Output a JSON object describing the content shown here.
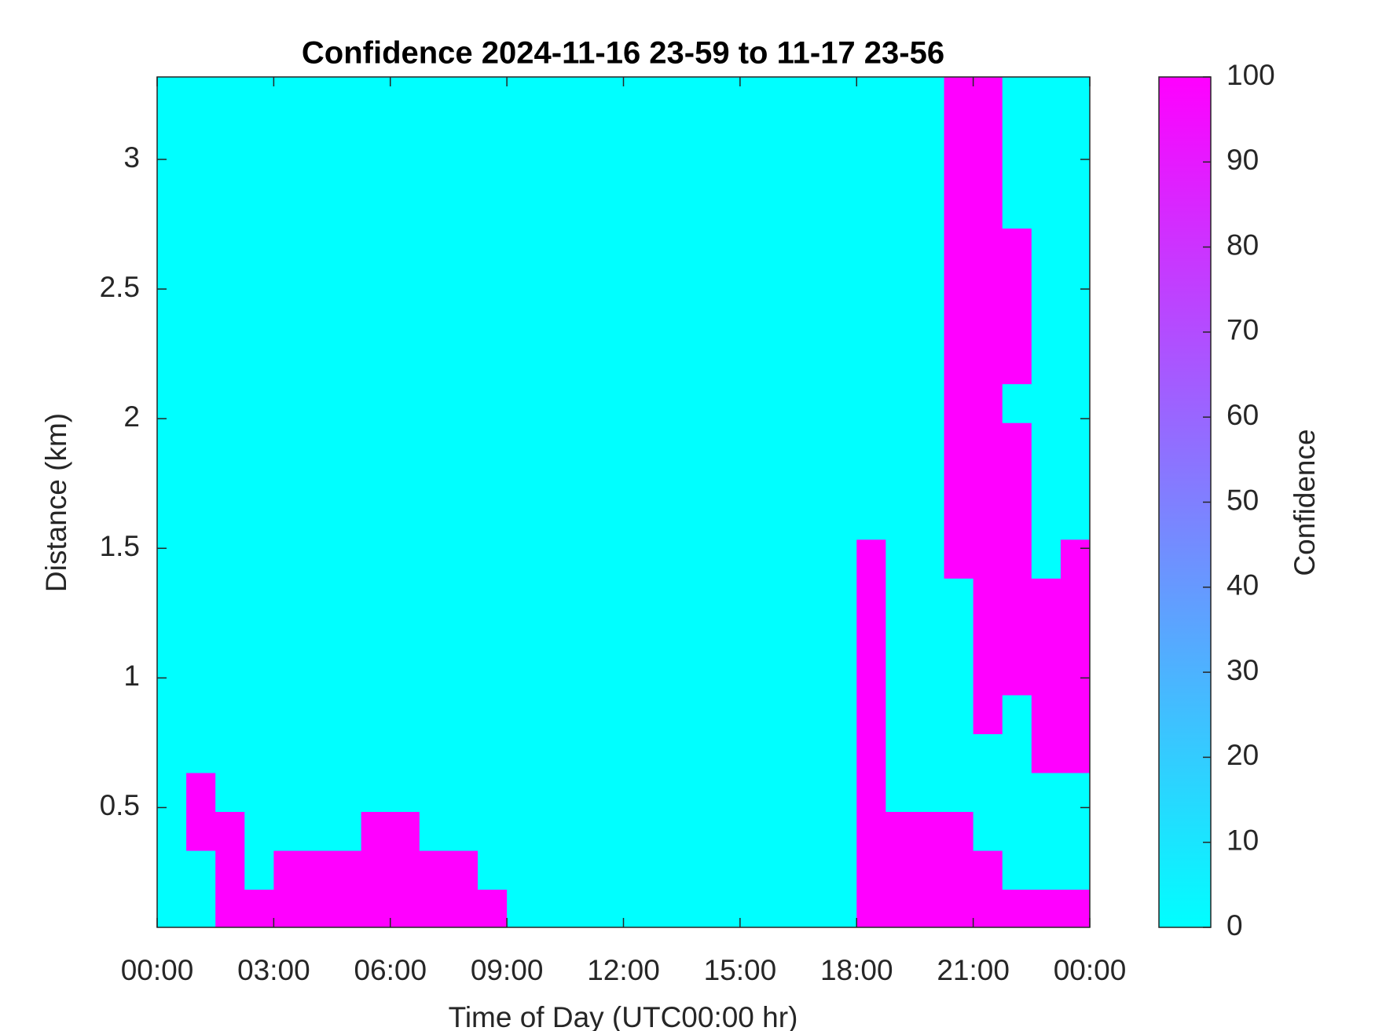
{
  "chart_data": {
    "type": "heatmap",
    "title": "Confidence 2024-11-16 23-59 to 11-17 23-56",
    "xlabel": "Time of Day (UTC00:00 hr)",
    "ylabel": "Distance (km)",
    "colorbar_label": "Confidence",
    "xlim": [
      0,
      24
    ],
    "xticks": [
      {
        "value": 0,
        "label": "00:00"
      },
      {
        "value": 3,
        "label": "03:00"
      },
      {
        "value": 6,
        "label": "06:00"
      },
      {
        "value": 9,
        "label": "09:00"
      },
      {
        "value": 12,
        "label": "12:00"
      },
      {
        "value": 15,
        "label": "15:00"
      },
      {
        "value": 18,
        "label": "18:00"
      },
      {
        "value": 21,
        "label": "21:00"
      },
      {
        "value": 24,
        "label": "00:00"
      }
    ],
    "ylim": [
      0.038,
      3.318
    ],
    "yticks": [
      0.5,
      1,
      1.5,
      2,
      2.5,
      3
    ],
    "clim": [
      0,
      100
    ],
    "cticks": [
      0,
      10,
      20,
      30,
      40,
      50,
      60,
      70,
      80,
      90,
      100
    ],
    "colormap": [
      "#00ffff",
      "#ff00ff"
    ],
    "x": [
      0.375,
      1.125,
      1.875,
      2.625,
      3.375,
      4.125,
      4.875,
      5.625,
      6.375,
      7.125,
      7.875,
      8.625,
      9.375,
      10.125,
      10.875,
      11.625,
      12.375,
      13.125,
      13.875,
      14.625,
      15.375,
      16.125,
      16.875,
      17.625,
      18.375,
      19.125,
      19.875,
      20.625,
      21.375,
      22.125,
      22.875,
      23.625
    ],
    "y": [
      0.11,
      0.26,
      0.41,
      0.56,
      0.71,
      0.86,
      1.01,
      1.16,
      1.31,
      1.46,
      1.61,
      1.76,
      1.91,
      2.06,
      2.21,
      2.36,
      2.51,
      2.66,
      2.81,
      2.96,
      3.11,
      3.26
    ],
    "z": [
      [
        0,
        0,
        100,
        100,
        100,
        100,
        100,
        100,
        100,
        100,
        100,
        100,
        0,
        0,
        0,
        0,
        0,
        0,
        0,
        0,
        0,
        0,
        0,
        0,
        100,
        100,
        100,
        100,
        100,
        100,
        100,
        100
      ],
      [
        0,
        0,
        100,
        0,
        100,
        100,
        100,
        100,
        100,
        100,
        100,
        0,
        0,
        0,
        0,
        0,
        0,
        0,
        0,
        0,
        0,
        0,
        0,
        0,
        100,
        100,
        100,
        100,
        100,
        0,
        0,
        0
      ],
      [
        0,
        100,
        100,
        0,
        0,
        0,
        0,
        100,
        100,
        0,
        0,
        0,
        0,
        0,
        0,
        0,
        0,
        0,
        0,
        0,
        0,
        0,
        0,
        0,
        100,
        100,
        100,
        100,
        0,
        0,
        0,
        0
      ],
      [
        0,
        100,
        0,
        0,
        0,
        0,
        0,
        0,
        0,
        0,
        0,
        0,
        0,
        0,
        0,
        0,
        0,
        0,
        0,
        0,
        0,
        0,
        0,
        0,
        100,
        0,
        0,
        0,
        0,
        0,
        0,
        0
      ],
      [
        0,
        0,
        0,
        0,
        0,
        0,
        0,
        0,
        0,
        0,
        0,
        0,
        0,
        0,
        0,
        0,
        0,
        0,
        0,
        0,
        0,
        0,
        0,
        0,
        100,
        0,
        0,
        0,
        0,
        0,
        100,
        100
      ],
      [
        0,
        0,
        0,
        0,
        0,
        0,
        0,
        0,
        0,
        0,
        0,
        0,
        0,
        0,
        0,
        0,
        0,
        0,
        0,
        0,
        0,
        0,
        0,
        0,
        100,
        0,
        0,
        0,
        100,
        0,
        100,
        100
      ],
      [
        0,
        0,
        0,
        0,
        0,
        0,
        0,
        0,
        0,
        0,
        0,
        0,
        0,
        0,
        0,
        0,
        0,
        0,
        0,
        0,
        0,
        0,
        0,
        0,
        100,
        0,
        0,
        0,
        100,
        100,
        100,
        100
      ],
      [
        0,
        0,
        0,
        0,
        0,
        0,
        0,
        0,
        0,
        0,
        0,
        0,
        0,
        0,
        0,
        0,
        0,
        0,
        0,
        0,
        0,
        0,
        0,
        0,
        100,
        0,
        0,
        0,
        100,
        100,
        100,
        100
      ],
      [
        0,
        0,
        0,
        0,
        0,
        0,
        0,
        0,
        0,
        0,
        0,
        0,
        0,
        0,
        0,
        0,
        0,
        0,
        0,
        0,
        0,
        0,
        0,
        0,
        100,
        0,
        0,
        0,
        100,
        100,
        100,
        100
      ],
      [
        0,
        0,
        0,
        0,
        0,
        0,
        0,
        0,
        0,
        0,
        0,
        0,
        0,
        0,
        0,
        0,
        0,
        0,
        0,
        0,
        0,
        0,
        0,
        0,
        100,
        0,
        0,
        100,
        100,
        100,
        0,
        100
      ],
      [
        0,
        0,
        0,
        0,
        0,
        0,
        0,
        0,
        0,
        0,
        0,
        0,
        0,
        0,
        0,
        0,
        0,
        0,
        0,
        0,
        0,
        0,
        0,
        0,
        0,
        0,
        0,
        100,
        100,
        100,
        0,
        0
      ],
      [
        0,
        0,
        0,
        0,
        0,
        0,
        0,
        0,
        0,
        0,
        0,
        0,
        0,
        0,
        0,
        0,
        0,
        0,
        0,
        0,
        0,
        0,
        0,
        0,
        0,
        0,
        0,
        100,
        100,
        100,
        0,
        0
      ],
      [
        0,
        0,
        0,
        0,
        0,
        0,
        0,
        0,
        0,
        0,
        0,
        0,
        0,
        0,
        0,
        0,
        0,
        0,
        0,
        0,
        0,
        0,
        0,
        0,
        0,
        0,
        0,
        100,
        100,
        100,
        0,
        0
      ],
      [
        0,
        0,
        0,
        0,
        0,
        0,
        0,
        0,
        0,
        0,
        0,
        0,
        0,
        0,
        0,
        0,
        0,
        0,
        0,
        0,
        0,
        0,
        0,
        0,
        0,
        0,
        0,
        100,
        100,
        0,
        0,
        0
      ],
      [
        0,
        0,
        0,
        0,
        0,
        0,
        0,
        0,
        0,
        0,
        0,
        0,
        0,
        0,
        0,
        0,
        0,
        0,
        0,
        0,
        0,
        0,
        0,
        0,
        0,
        0,
        0,
        100,
        100,
        100,
        0,
        0
      ],
      [
        0,
        0,
        0,
        0,
        0,
        0,
        0,
        0,
        0,
        0,
        0,
        0,
        0,
        0,
        0,
        0,
        0,
        0,
        0,
        0,
        0,
        0,
        0,
        0,
        0,
        0,
        0,
        100,
        100,
        100,
        0,
        0
      ],
      [
        0,
        0,
        0,
        0,
        0,
        0,
        0,
        0,
        0,
        0,
        0,
        0,
        0,
        0,
        0,
        0,
        0,
        0,
        0,
        0,
        0,
        0,
        0,
        0,
        0,
        0,
        0,
        100,
        100,
        100,
        0,
        0
      ],
      [
        0,
        0,
        0,
        0,
        0,
        0,
        0,
        0,
        0,
        0,
        0,
        0,
        0,
        0,
        0,
        0,
        0,
        0,
        0,
        0,
        0,
        0,
        0,
        0,
        0,
        0,
        0,
        100,
        100,
        100,
        0,
        0
      ],
      [
        0,
        0,
        0,
        0,
        0,
        0,
        0,
        0,
        0,
        0,
        0,
        0,
        0,
        0,
        0,
        0,
        0,
        0,
        0,
        0,
        0,
        0,
        0,
        0,
        0,
        0,
        0,
        100,
        100,
        0,
        0,
        0
      ],
      [
        0,
        0,
        0,
        0,
        0,
        0,
        0,
        0,
        0,
        0,
        0,
        0,
        0,
        0,
        0,
        0,
        0,
        0,
        0,
        0,
        0,
        0,
        0,
        0,
        0,
        0,
        0,
        100,
        100,
        0,
        0,
        0
      ],
      [
        0,
        0,
        0,
        0,
        0,
        0,
        0,
        0,
        0,
        0,
        0,
        0,
        0,
        0,
        0,
        0,
        0,
        0,
        0,
        0,
        0,
        0,
        0,
        0,
        0,
        0,
        0,
        100,
        100,
        0,
        0,
        0
      ],
      [
        0,
        0,
        0,
        0,
        0,
        0,
        0,
        0,
        0,
        0,
        0,
        0,
        0,
        0,
        0,
        0,
        0,
        0,
        0,
        0,
        0,
        0,
        0,
        0,
        0,
        0,
        0,
        100,
        100,
        0,
        0,
        0
      ]
    ]
  }
}
